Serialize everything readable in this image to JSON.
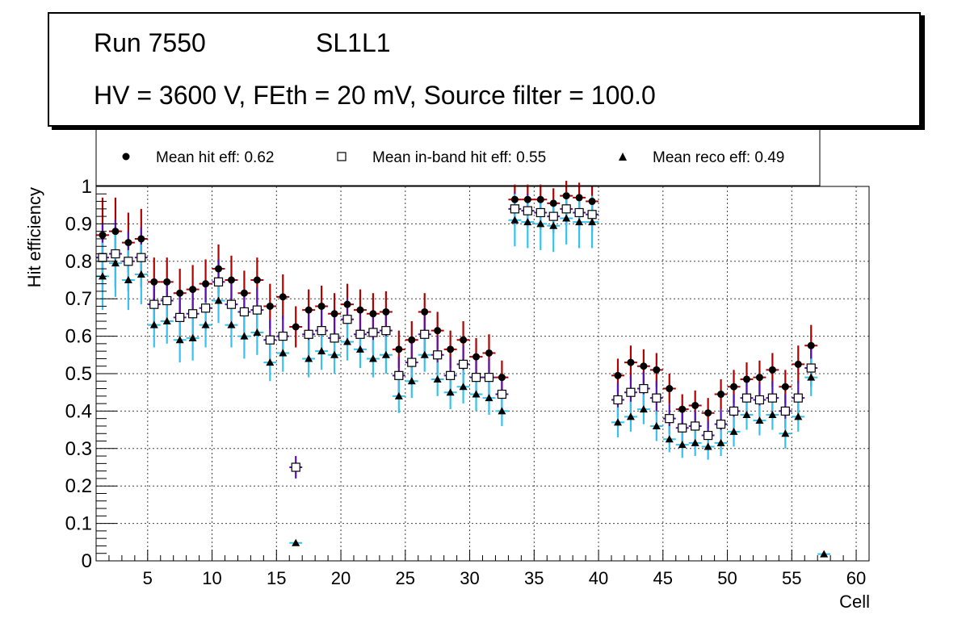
{
  "header": {
    "run": "Run 7550",
    "layer": "SL1L1",
    "settings": "HV = 3600 V, FEth = 20 mV, Source filter = 100.0"
  },
  "colors": {
    "hit_err": "#b00000",
    "inband_err": "#5a10b0",
    "reco_err": "#33c3ee",
    "grid": "#444444"
  },
  "chart_data": {
    "type": "scatter",
    "xlabel": "Cell",
    "ylabel": "Hit efficiency",
    "xlim": [
      1,
      61
    ],
    "ylim": [
      0,
      1
    ],
    "xticks": [
      5,
      10,
      15,
      20,
      25,
      30,
      35,
      40,
      45,
      50,
      55,
      60
    ],
    "yticks": [
      0,
      0.1,
      0.2,
      0.3,
      0.4,
      0.5,
      0.6,
      0.7,
      0.8,
      0.9,
      1
    ],
    "ytick_labels": [
      "0",
      "0.1",
      "0.2",
      "0.3",
      "0.4",
      "0.5",
      "0.6",
      "0.7",
      "0.8",
      "0.9",
      "1"
    ],
    "grid": true,
    "legend": [
      {
        "label": "Mean hit  eff: 0.62",
        "marker": "circle"
      },
      {
        "label": "Mean in-band hit eff: 0.55",
        "marker": "open-square"
      },
      {
        "label": "Mean reco eff: 0.49",
        "marker": "triangle"
      }
    ],
    "series": [
      {
        "name": "Mean hit eff",
        "marker": "circle",
        "points": [
          [
            1.5,
            0.87,
            0.1
          ],
          [
            2.5,
            0.88,
            0.09
          ],
          [
            3.5,
            0.85,
            0.08
          ],
          [
            4.5,
            0.86,
            0.08
          ],
          [
            5.5,
            0.745,
            0.065
          ],
          [
            6.5,
            0.745,
            0.065
          ],
          [
            7.5,
            0.715,
            0.065
          ],
          [
            8.5,
            0.725,
            0.065
          ],
          [
            9.5,
            0.74,
            0.065
          ],
          [
            10.5,
            0.78,
            0.065
          ],
          [
            11.5,
            0.75,
            0.065
          ],
          [
            12.5,
            0.715,
            0.06
          ],
          [
            13.5,
            0.75,
            0.06
          ],
          [
            14.5,
            0.68,
            0.06
          ],
          [
            15.5,
            0.705,
            0.06
          ],
          [
            16.5,
            0.625,
            0.055
          ],
          [
            17.5,
            0.67,
            0.055
          ],
          [
            18.5,
            0.68,
            0.055
          ],
          [
            19.5,
            0.66,
            0.055
          ],
          [
            20.5,
            0.685,
            0.055
          ],
          [
            21.5,
            0.67,
            0.055
          ],
          [
            22.5,
            0.66,
            0.055
          ],
          [
            23.5,
            0.665,
            0.055
          ],
          [
            24.5,
            0.565,
            0.05
          ],
          [
            25.5,
            0.59,
            0.05
          ],
          [
            26.5,
            0.665,
            0.05
          ],
          [
            27.5,
            0.615,
            0.05
          ],
          [
            28.5,
            0.565,
            0.05
          ],
          [
            29.5,
            0.59,
            0.05
          ],
          [
            30.5,
            0.545,
            0.05
          ],
          [
            31.5,
            0.555,
            0.05
          ],
          [
            32.5,
            0.49,
            0.045
          ],
          [
            33.5,
            0.965,
            0.04
          ],
          [
            34.5,
            0.965,
            0.04
          ],
          [
            35.5,
            0.965,
            0.04
          ],
          [
            36.5,
            0.955,
            0.04
          ],
          [
            37.5,
            0.975,
            0.04
          ],
          [
            38.5,
            0.97,
            0.04
          ],
          [
            39.5,
            0.96,
            0.04
          ],
          [
            41.5,
            0.495,
            0.045
          ],
          [
            42.5,
            0.53,
            0.045
          ],
          [
            43.5,
            0.52,
            0.045
          ],
          [
            44.5,
            0.51,
            0.045
          ],
          [
            45.5,
            0.46,
            0.04
          ],
          [
            46.5,
            0.405,
            0.04
          ],
          [
            47.5,
            0.415,
            0.04
          ],
          [
            48.5,
            0.395,
            0.04
          ],
          [
            49.5,
            0.445,
            0.04
          ],
          [
            50.5,
            0.465,
            0.045
          ],
          [
            51.5,
            0.485,
            0.045
          ],
          [
            52.5,
            0.49,
            0.045
          ],
          [
            53.5,
            0.51,
            0.045
          ],
          [
            54.5,
            0.465,
            0.045
          ],
          [
            55.5,
            0.525,
            0.05
          ],
          [
            56.5,
            0.575,
            0.055
          ]
        ]
      },
      {
        "name": "Mean in-band hit eff",
        "marker": "open-square",
        "points": [
          [
            1.5,
            0.81,
            0.09
          ],
          [
            2.5,
            0.82,
            0.09
          ],
          [
            3.5,
            0.8,
            0.08
          ],
          [
            4.5,
            0.81,
            0.08
          ],
          [
            5.5,
            0.685,
            0.06
          ],
          [
            6.5,
            0.695,
            0.06
          ],
          [
            7.5,
            0.65,
            0.06
          ],
          [
            8.5,
            0.66,
            0.06
          ],
          [
            9.5,
            0.675,
            0.06
          ],
          [
            10.5,
            0.745,
            0.06
          ],
          [
            11.5,
            0.685,
            0.06
          ],
          [
            12.5,
            0.665,
            0.06
          ],
          [
            13.5,
            0.67,
            0.06
          ],
          [
            14.5,
            0.59,
            0.055
          ],
          [
            15.5,
            0.6,
            0.055
          ],
          [
            16.5,
            0.25,
            0.03
          ],
          [
            17.5,
            0.605,
            0.055
          ],
          [
            18.5,
            0.615,
            0.055
          ],
          [
            19.5,
            0.595,
            0.055
          ],
          [
            20.5,
            0.645,
            0.055
          ],
          [
            21.5,
            0.605,
            0.055
          ],
          [
            22.5,
            0.61,
            0.055
          ],
          [
            23.5,
            0.615,
            0.055
          ],
          [
            24.5,
            0.495,
            0.05
          ],
          [
            25.5,
            0.53,
            0.05
          ],
          [
            26.5,
            0.605,
            0.05
          ],
          [
            27.5,
            0.55,
            0.05
          ],
          [
            28.5,
            0.495,
            0.05
          ],
          [
            29.5,
            0.525,
            0.05
          ],
          [
            30.5,
            0.49,
            0.05
          ],
          [
            31.5,
            0.49,
            0.05
          ],
          [
            32.5,
            0.445,
            0.045
          ],
          [
            33.5,
            0.94,
            0.045
          ],
          [
            34.5,
            0.935,
            0.045
          ],
          [
            35.5,
            0.93,
            0.045
          ],
          [
            36.5,
            0.92,
            0.045
          ],
          [
            37.5,
            0.94,
            0.045
          ],
          [
            38.5,
            0.93,
            0.045
          ],
          [
            39.5,
            0.925,
            0.045
          ],
          [
            41.5,
            0.43,
            0.045
          ],
          [
            42.5,
            0.45,
            0.045
          ],
          [
            43.5,
            0.46,
            0.045
          ],
          [
            44.5,
            0.435,
            0.045
          ],
          [
            45.5,
            0.38,
            0.04
          ],
          [
            46.5,
            0.355,
            0.04
          ],
          [
            47.5,
            0.36,
            0.04
          ],
          [
            48.5,
            0.335,
            0.04
          ],
          [
            49.5,
            0.365,
            0.04
          ],
          [
            50.5,
            0.4,
            0.045
          ],
          [
            51.5,
            0.435,
            0.045
          ],
          [
            52.5,
            0.43,
            0.045
          ],
          [
            53.5,
            0.435,
            0.045
          ],
          [
            54.5,
            0.4,
            0.045
          ],
          [
            55.5,
            0.435,
            0.045
          ],
          [
            56.5,
            0.515,
            0.05
          ]
        ]
      },
      {
        "name": "Mean reco eff",
        "marker": "triangle",
        "points": [
          [
            1.5,
            0.76,
            0.09
          ],
          [
            2.5,
            0.795,
            0.09
          ],
          [
            3.5,
            0.75,
            0.08
          ],
          [
            4.5,
            0.765,
            0.08
          ],
          [
            5.5,
            0.63,
            0.06
          ],
          [
            6.5,
            0.64,
            0.06
          ],
          [
            7.5,
            0.59,
            0.06
          ],
          [
            8.5,
            0.595,
            0.06
          ],
          [
            9.5,
            0.63,
            0.06
          ],
          [
            10.5,
            0.695,
            0.06
          ],
          [
            11.5,
            0.63,
            0.06
          ],
          [
            12.5,
            0.6,
            0.06
          ],
          [
            13.5,
            0.61,
            0.06
          ],
          [
            14.5,
            0.53,
            0.05
          ],
          [
            15.5,
            0.555,
            0.05
          ],
          [
            16.5,
            0.048,
            0.005
          ],
          [
            17.5,
            0.54,
            0.05
          ],
          [
            18.5,
            0.56,
            0.05
          ],
          [
            19.5,
            0.55,
            0.05
          ],
          [
            20.5,
            0.585,
            0.05
          ],
          [
            21.5,
            0.565,
            0.05
          ],
          [
            22.5,
            0.54,
            0.05
          ],
          [
            23.5,
            0.55,
            0.05
          ],
          [
            24.5,
            0.44,
            0.045
          ],
          [
            25.5,
            0.48,
            0.045
          ],
          [
            26.5,
            0.55,
            0.045
          ],
          [
            27.5,
            0.485,
            0.045
          ],
          [
            28.5,
            0.45,
            0.045
          ],
          [
            29.5,
            0.465,
            0.045
          ],
          [
            30.5,
            0.445,
            0.045
          ],
          [
            31.5,
            0.435,
            0.045
          ],
          [
            32.5,
            0.4,
            0.04
          ],
          [
            33.5,
            0.91,
            0.07
          ],
          [
            34.5,
            0.905,
            0.07
          ],
          [
            35.5,
            0.9,
            0.07
          ],
          [
            36.5,
            0.895,
            0.07
          ],
          [
            37.5,
            0.915,
            0.07
          ],
          [
            38.5,
            0.905,
            0.07
          ],
          [
            39.5,
            0.905,
            0.07
          ],
          [
            41.5,
            0.37,
            0.04
          ],
          [
            42.5,
            0.385,
            0.04
          ],
          [
            43.5,
            0.405,
            0.04
          ],
          [
            44.5,
            0.36,
            0.04
          ],
          [
            45.5,
            0.325,
            0.035
          ],
          [
            46.5,
            0.31,
            0.035
          ],
          [
            47.5,
            0.315,
            0.035
          ],
          [
            48.5,
            0.305,
            0.035
          ],
          [
            49.5,
            0.315,
            0.035
          ],
          [
            50.5,
            0.345,
            0.04
          ],
          [
            51.5,
            0.39,
            0.04
          ],
          [
            52.5,
            0.375,
            0.04
          ],
          [
            53.5,
            0.39,
            0.04
          ],
          [
            54.5,
            0.34,
            0.04
          ],
          [
            55.5,
            0.385,
            0.04
          ],
          [
            56.5,
            0.49,
            0.05
          ],
          [
            57.5,
            0.018,
            0.005
          ]
        ]
      }
    ]
  }
}
